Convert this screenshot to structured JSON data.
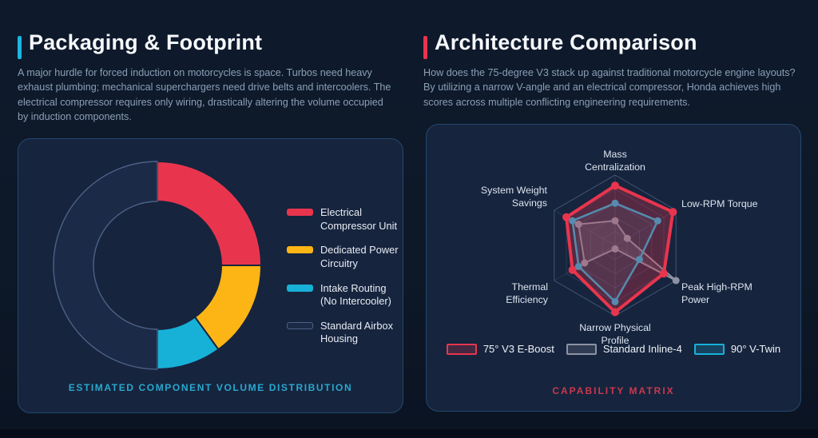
{
  "page": {
    "left_panel": {
      "title": "Packaging & Footprint",
      "accent_color": "#1cb5e0",
      "description": "A major hurdle for forced induction on motorcycles is space. Turbos need heavy exhaust plumbing; mechanical superchargers need drive belts and intercoolers. The electrical compressor requires only wiring, drastically altering the volume occupied by induction components.",
      "caption_color": "#29a8ce"
    },
    "right_panel": {
      "title": "Architecture Comparison",
      "accent_color": "#e8354d",
      "description": "How does the 75-degree V3 stack up against traditional motorcycle engine layouts? By utilizing a narrow V-angle and an electrical compressor, Honda achieves high scores across multiple conflicting engineering requirements.",
      "caption_color": "#c9384d"
    }
  },
  "chart_data": [
    {
      "type": "pie",
      "subtype": "donut",
      "title": "ESTIMATED COMPONENT VOLUME DISTRIBUTION",
      "categories": [
        "Electrical Compressor Unit",
        "Dedicated Power Circuitry",
        "Intake Routing (No Intercooler)",
        "Standard Airbox Housing"
      ],
      "legend_labels": [
        "Electrical\nCompressor Unit",
        "Dedicated Power\nCircuitry",
        "Intake Routing\n(No Intercooler)",
        "Standard Airbox\nHousing"
      ],
      "values": [
        25,
        15,
        10,
        50
      ],
      "unit": "percent (estimated share of volume)",
      "colors": [
        "#e8354d",
        "#fdb515",
        "#17b1d8",
        "#1b2a46"
      ],
      "outline_colors": [
        null,
        null,
        null,
        "#4d6186"
      ],
      "start_angle": "top, clockwise",
      "legend_position": "right"
    },
    {
      "type": "radar",
      "title": "CAPABILITY MATRIX",
      "axes": [
        "Mass Centralization",
        "Low-RPM Torque",
        "Peak High-RPM Power",
        "Narrow Physical Profile",
        "Thermal Efficiency",
        "System Weight Savings"
      ],
      "axis_labels_display": [
        "Mass\nCentralization",
        "Low-RPM Torque",
        "Peak High-RPM\nPower",
        "Narrow Physical\nProfile",
        "Thermal\nEfficiency",
        "System Weight\nSavings"
      ],
      "scale": [
        0,
        10
      ],
      "rings": 5,
      "grid": "hexagonal",
      "series": [
        {
          "name": "75° V3 E-Boost",
          "color": "#e8354d",
          "values": [
            8.5,
            9.5,
            8,
            9.5,
            7,
            8
          ]
        },
        {
          "name": "Standard Inline-4",
          "color": "#8d93a3",
          "values": [
            3.5,
            2,
            10,
            0.5,
            5,
            6
          ]
        },
        {
          "name": "90° V-Twin",
          "color": "#17b1d8",
          "values": [
            6,
            7,
            4,
            8,
            6,
            7
          ]
        }
      ],
      "legend_position": "bottom"
    }
  ]
}
